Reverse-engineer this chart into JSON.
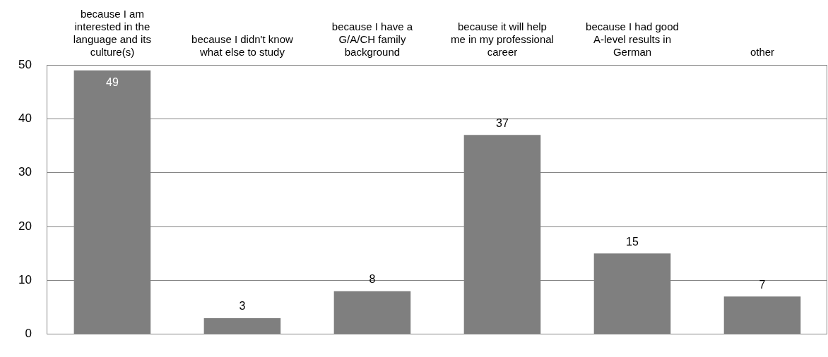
{
  "chart_data": {
    "type": "bar",
    "categories": [
      "because I am interested in the language and its culture(s)",
      "because I didn't know what else to study",
      "because I have a G/A/CH family background",
      "because it will help me in my professional career",
      "because I had good A-level results in German",
      "other"
    ],
    "values": [
      49,
      3,
      8,
      37,
      15,
      7
    ],
    "color": "#7f7f7f",
    "ylim": [
      0,
      50
    ],
    "yticks": [
      0,
      10,
      20,
      30,
      40,
      50
    ],
    "grid": "y",
    "legend": false,
    "data_labels": true
  }
}
